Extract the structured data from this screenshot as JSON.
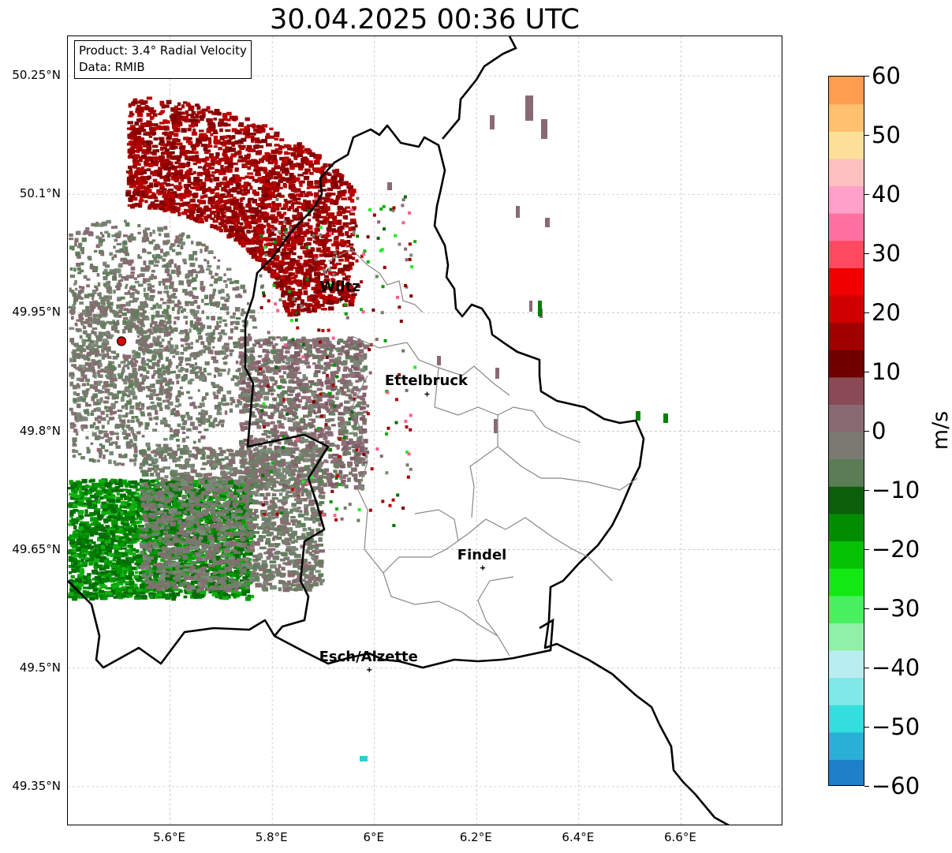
{
  "title": "30.04.2025 00:36 UTC",
  "info": {
    "product": "Product: 3.4° Radial Velocity",
    "source": "Data: RMIB"
  },
  "map": {
    "lon_range": [
      5.4,
      6.8
    ],
    "lat_range": [
      49.3,
      50.3
    ],
    "lat_ticks": [
      "50.25°N",
      "50.1°N",
      "49.95°N",
      "49.8°N",
      "49.65°N",
      "49.5°N",
      "49.35°N"
    ],
    "lat_tick_values": [
      50.25,
      50.1,
      49.95,
      49.8,
      49.65,
      49.5,
      49.35
    ],
    "lon_ticks": [
      "5.6°E",
      "5.8°E",
      "6°E",
      "6.2°E",
      "6.4°E",
      "6.6°E"
    ],
    "lon_tick_values": [
      5.6,
      5.8,
      6.0,
      6.2,
      6.4,
      6.6
    ],
    "gridlines": true,
    "radar_site": {
      "lon": 5.505,
      "lat": 49.914
    },
    "cities": [
      {
        "name": "Wiltz",
        "lon": 5.934,
        "lat": 49.966
      },
      {
        "name": "Ettelbruck",
        "lon": 6.103,
        "lat": 49.847
      },
      {
        "name": "Findel",
        "lon": 6.212,
        "lat": 49.627
      },
      {
        "name": "Esch/Alzette",
        "lon": 5.99,
        "lat": 49.498
      }
    ]
  },
  "colorbar": {
    "unit": "m/s",
    "range": [
      -60,
      60
    ],
    "ticks": [
      "60",
      "50",
      "40",
      "30",
      "20",
      "10",
      "0",
      "−10",
      "−20",
      "−30",
      "−40",
      "−50",
      "−60"
    ],
    "tick_values": [
      60,
      50,
      40,
      30,
      20,
      10,
      0,
      -10,
      -20,
      -30,
      -40,
      -50,
      -60
    ],
    "colors": [
      "#1f7fc8",
      "#2ab0d6",
      "#33dede",
      "#80e8e8",
      "#b8eef0",
      "#90f0a8",
      "#48f060",
      "#12e812",
      "#05c205",
      "#008c00",
      "#0b5f0b",
      "#5a7d55",
      "#7b7a72",
      "#8a6a72",
      "#8a4a55",
      "#6e0000",
      "#a00000",
      "#d00000",
      "#f00000",
      "#ff4a60",
      "#ff70a0",
      "#ffa0c8",
      "#ffc0c0",
      "#ffe09a",
      "#ffc070",
      "#ff9c50"
    ]
  }
}
